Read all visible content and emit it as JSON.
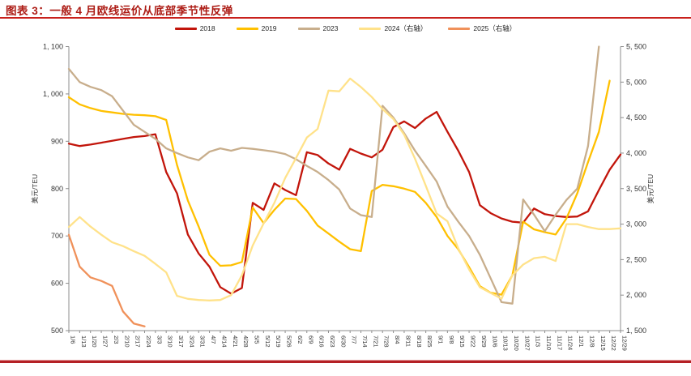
{
  "title": "图表 3：一般 4 月欧线运价从底部季节性反弹",
  "colors": {
    "title_text": "#ad1c15",
    "title_rule": "#c9211c",
    "footer_rule": "#b42025",
    "axis_line": "#8c8c8c",
    "tick_text": "#333333"
  },
  "chart_data": {
    "type": "line",
    "legend_position": "top",
    "x_labels": [
      "1/6",
      "1/13",
      "1/20",
      "1/27",
      "2/3",
      "2/10",
      "2/17",
      "2/24",
      "3/3",
      "3/10",
      "3/17",
      "3/24",
      "3/31",
      "4/7",
      "4/14",
      "4/21",
      "4/28",
      "5/5",
      "5/12",
      "5/19",
      "5/26",
      "6/2",
      "6/9",
      "6/16",
      "6/23",
      "6/30",
      "7/7",
      "7/14",
      "7/21",
      "7/28",
      "8/4",
      "8/11",
      "8/18",
      "8/25",
      "9/1",
      "9/8",
      "9/15",
      "9/22",
      "9/29",
      "10/6",
      "10/13",
      "10/20",
      "10/27",
      "11/3",
      "11/10",
      "11/17",
      "11/24",
      "12/1",
      "12/8",
      "12/15",
      "12/22",
      "12/29"
    ],
    "left_axis": {
      "label": "美元/TEU",
      "min": 500,
      "max": 1100,
      "step": 100,
      "tick_labels": [
        "500",
        "600",
        "700",
        "800",
        "900",
        "1, 000",
        "1, 100"
      ]
    },
    "right_axis": {
      "label": "美元/TEU",
      "min": 1500,
      "max": 5500,
      "step": 500,
      "tick_labels": [
        "1, 500",
        "2, 000",
        "2, 500",
        "3, 000",
        "3, 500",
        "4, 000",
        "4, 500",
        "5, 000",
        "5, 500"
      ]
    },
    "series": [
      {
        "name": "2018",
        "axis": "left",
        "color": "#c2150b",
        "values": [
          895,
          890,
          893,
          897,
          901,
          905,
          909,
          911,
          915,
          835,
          790,
          703,
          663,
          635,
          592,
          578,
          590,
          770,
          755,
          811,
          797,
          786,
          877,
          871,
          853,
          840,
          884,
          874,
          866,
          882,
          930,
          942,
          928,
          948,
          962,
          920,
          880,
          835,
          765,
          748,
          737,
          730,
          728,
          758,
          746,
          742,
          740,
          741,
          752,
          797,
          840,
          872
        ]
      },
      {
        "name": "2019",
        "axis": "left",
        "color": "#ffc000",
        "values": [
          993,
          978,
          970,
          964,
          961,
          958,
          956,
          955,
          953,
          945,
          850,
          775,
          720,
          660,
          637,
          638,
          645,
          760,
          727,
          755,
          779,
          778,
          753,
          722,
          705,
          688,
          672,
          668,
          795,
          808,
          805,
          800,
          793,
          770,
          740,
          700,
          672,
          634,
          594,
          580,
          576,
          617,
          730,
          714,
          708,
          703,
          737,
          790,
          856,
          920,
          1028,
          null
        ]
      },
      {
        "name": "2023",
        "axis": "left",
        "color": "#c8ae8c",
        "values": [
          1053,
          1025,
          1015,
          1008,
          995,
          965,
          935,
          920,
          905,
          885,
          875,
          866,
          860,
          878,
          885,
          880,
          886,
          884,
          881,
          878,
          873,
          862,
          848,
          835,
          818,
          798,
          758,
          744,
          740,
          975,
          950,
          917,
          880,
          848,
          815,
          762,
          730,
          700,
          660,
          610,
          560,
          557,
          777,
          745,
          710,
          745,
          776,
          800,
          890,
          1100,
          null,
          null
        ]
      },
      {
        "name": "2024（右轴）",
        "axis": "right",
        "color": "#ffe28a",
        "values": [
          2960,
          3100,
          2965,
          2850,
          2745,
          2690,
          2620,
          2553,
          2440,
          2320,
          1990,
          1947,
          1931,
          1925,
          1931,
          2000,
          2280,
          2700,
          3010,
          3300,
          3650,
          3930,
          4220,
          4340,
          4880,
          4870,
          5050,
          4930,
          4790,
          4620,
          4480,
          4260,
          3920,
          3540,
          3150,
          3040,
          2660,
          2360,
          2110,
          2030,
          1950,
          2280,
          2430,
          2520,
          2540,
          2480,
          3000,
          3000,
          2960,
          2930,
          2930,
          2940
        ]
      },
      {
        "name": "2025（右轴）",
        "axis": "right",
        "color": "#f0915a",
        "values": [
          2850,
          2400,
          2250,
          2200,
          2130,
          1770,
          1600,
          1560,
          null,
          null,
          null,
          null,
          null,
          null,
          null,
          null,
          null,
          null,
          null,
          null,
          null,
          null,
          null,
          null,
          null,
          null,
          null,
          null,
          null,
          null,
          null,
          null,
          null,
          null,
          null,
          null,
          null,
          null,
          null,
          null,
          null,
          null,
          null,
          null,
          null,
          null,
          null,
          null,
          null,
          null,
          null,
          null
        ]
      }
    ]
  }
}
